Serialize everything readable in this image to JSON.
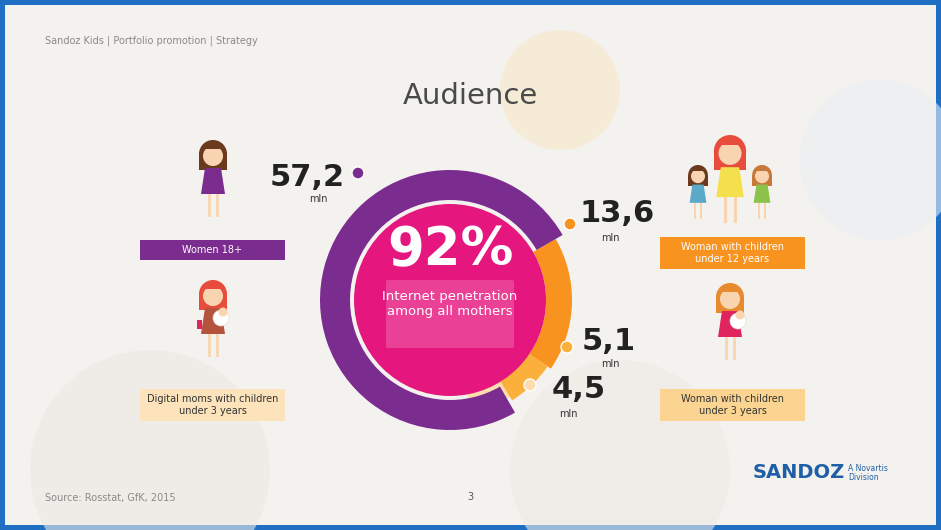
{
  "header": "Sandoz Kids | Portfolio promotion | Strategy",
  "title": "Audience",
  "chart_data": {
    "type": "donut",
    "categories": [
      "Women 18+",
      "Woman with children under 12 years",
      "Woman with children under 3 years",
      "Digital moms with children under 3 years"
    ],
    "values": [
      57.2,
      13.6,
      5.1,
      4.5
    ],
    "value_labels": [
      "57,2",
      "13,6",
      "5,1",
      "4,5"
    ],
    "value_unit": "mln",
    "colors": [
      "#7B2C8F",
      "#F7931E",
      "#FBB03B",
      "#FDDDB0"
    ],
    "data_labels": true
  },
  "center": {
    "label": "92%",
    "text": "Internet penetration among all mothers"
  },
  "source": "Source: Rosstat, GfK, 2015",
  "page": 3,
  "logo": {
    "name": "SANDOZ",
    "tagline": "A Novartis Division"
  }
}
